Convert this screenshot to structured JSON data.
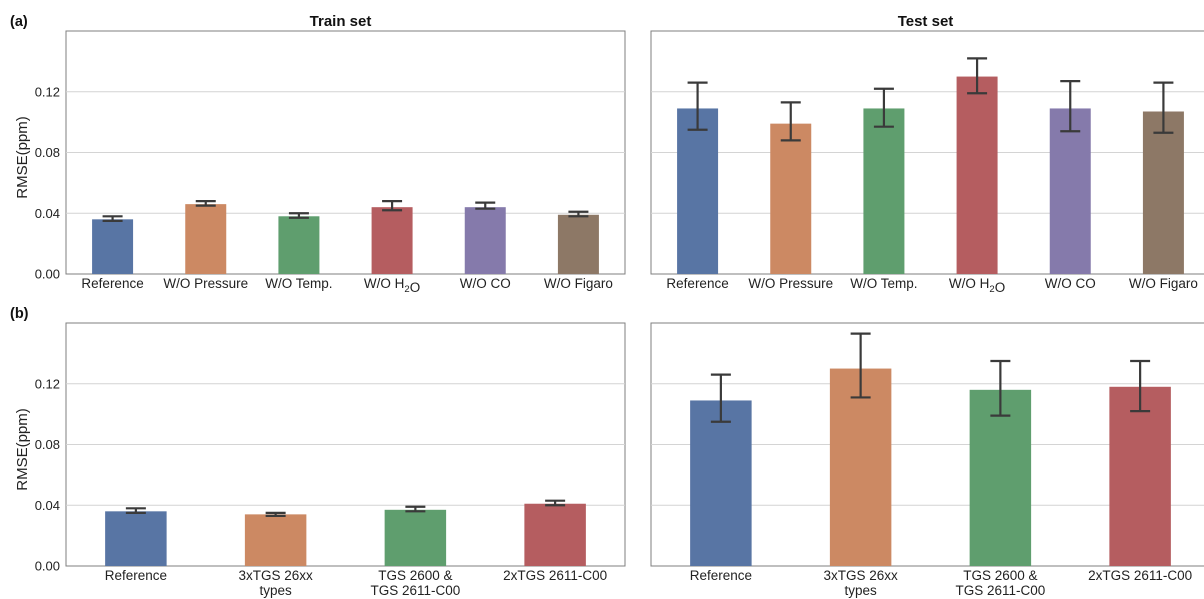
{
  "chart_data": [
    {
      "type": "bar",
      "panel_label": "(a)",
      "title": "Train set",
      "ylabel": "RMSE(ppm)",
      "ylim": [
        0,
        0.16
      ],
      "yticks": [
        "0.00",
        "0.04",
        "0.08",
        "0.12"
      ],
      "categories": [
        [
          "Reference"
        ],
        [
          "W/O Pressure"
        ],
        [
          "W/O Temp."
        ],
        [
          "W/O H₂O"
        ],
        [
          "W/O CO"
        ],
        [
          "W/O Figaro"
        ]
      ],
      "values": [
        0.036,
        0.046,
        0.038,
        0.044,
        0.044,
        0.039
      ],
      "err_low": [
        0.035,
        0.045,
        0.037,
        0.042,
        0.043,
        0.038
      ],
      "err_high": [
        0.038,
        0.048,
        0.04,
        0.048,
        0.047,
        0.041
      ],
      "colors": [
        "#5875a4",
        "#cc8963",
        "#5f9e6e",
        "#b55d60",
        "#857aab",
        "#8d7866"
      ],
      "grid": true
    },
    {
      "type": "bar",
      "panel_label": "",
      "title": "Test set",
      "ylabel": "",
      "ylim": [
        0,
        0.16
      ],
      "yticks": [],
      "categories": [
        [
          "Reference"
        ],
        [
          "W/O Pressure"
        ],
        [
          "W/O Temp."
        ],
        [
          "W/O H₂O"
        ],
        [
          "W/O CO"
        ],
        [
          "W/O Figaro"
        ]
      ],
      "values": [
        0.109,
        0.099,
        0.109,
        0.13,
        0.109,
        0.107
      ],
      "err_low": [
        0.095,
        0.088,
        0.097,
        0.119,
        0.094,
        0.093
      ],
      "err_high": [
        0.126,
        0.113,
        0.122,
        0.142,
        0.127,
        0.126
      ],
      "colors": [
        "#5875a4",
        "#cc8963",
        "#5f9e6e",
        "#b55d60",
        "#857aab",
        "#8d7866"
      ],
      "grid": true
    },
    {
      "type": "bar",
      "panel_label": "(b)",
      "title": "",
      "ylabel": "RMSE(ppm)",
      "ylim": [
        0,
        0.16
      ],
      "yticks": [
        "0.00",
        "0.04",
        "0.08",
        "0.12"
      ],
      "categories": [
        [
          "Reference"
        ],
        [
          "3xTGS 26xx",
          "types"
        ],
        [
          "TGS 2600 &",
          "TGS 2611-C00"
        ],
        [
          "2xTGS 2611-C00"
        ]
      ],
      "values": [
        0.036,
        0.034,
        0.037,
        0.041
      ],
      "err_low": [
        0.035,
        0.033,
        0.036,
        0.04
      ],
      "err_high": [
        0.038,
        0.035,
        0.039,
        0.043
      ],
      "colors": [
        "#5875a4",
        "#cc8963",
        "#5f9e6e",
        "#b55d60"
      ],
      "grid": true
    },
    {
      "type": "bar",
      "panel_label": "",
      "title": "",
      "ylabel": "",
      "ylim": [
        0,
        0.16
      ],
      "yticks": [],
      "categories": [
        [
          "Reference"
        ],
        [
          "3xTGS 26xx",
          "types"
        ],
        [
          "TGS 2600 &",
          "TGS 2611-C00"
        ],
        [
          "2xTGS 2611-C00"
        ]
      ],
      "values": [
        0.109,
        0.13,
        0.116,
        0.118
      ],
      "err_low": [
        0.095,
        0.111,
        0.099,
        0.102
      ],
      "err_high": [
        0.126,
        0.153,
        0.135,
        0.135
      ],
      "colors": [
        "#5875a4",
        "#cc8963",
        "#5f9e6e",
        "#b55d60"
      ],
      "grid": true
    }
  ]
}
